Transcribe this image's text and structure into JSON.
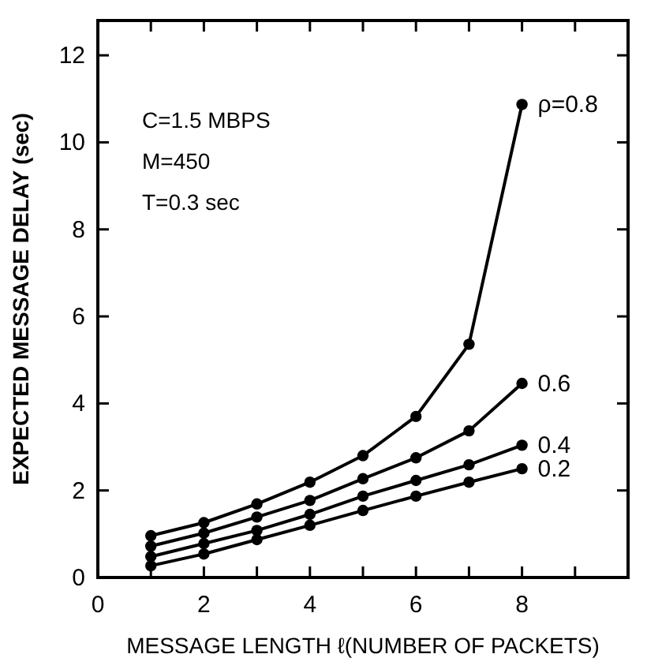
{
  "chart_data": {
    "type": "line",
    "xlabel": "MESSAGE LENGTH ℓ(NUMBER OF PACKETS)",
    "ylabel": "EXPECTED MESSAGE DELAY (sec)",
    "x": [
      1,
      2,
      3,
      4,
      5,
      6,
      7,
      8
    ],
    "series": [
      {
        "name": "ρ=0.8",
        "color": "#000000",
        "values": [
          0.96,
          1.26,
          1.69,
          2.19,
          2.8,
          3.7,
          5.36,
          10.87
        ]
      },
      {
        "name": "0.6",
        "color": "#000000",
        "values": [
          0.72,
          1.02,
          1.39,
          1.77,
          2.27,
          2.75,
          3.37,
          4.46
        ]
      },
      {
        "name": "0.4",
        "color": "#000000",
        "values": [
          0.48,
          0.78,
          1.08,
          1.45,
          1.87,
          2.23,
          2.59,
          3.04
        ]
      },
      {
        "name": "0.2",
        "color": "#000000",
        "values": [
          0.27,
          0.54,
          0.87,
          1.2,
          1.54,
          1.87,
          2.19,
          2.5
        ]
      }
    ],
    "xlim": [
      0,
      10
    ],
    "xticks": [
      0,
      {
        "value": 1,
        "label": null
      },
      2,
      {
        "value": 3,
        "label": null
      },
      4,
      {
        "value": 5,
        "label": null
      },
      6,
      {
        "value": 7,
        "label": null
      },
      8,
      {
        "value": 9,
        "label": null
      }
    ],
    "ylim": [
      0,
      12.8
    ],
    "yticks": [
      0,
      2,
      4,
      6,
      8,
      10,
      12
    ],
    "annotations": [
      "C=1.5 MBPS",
      "M=450",
      "T=0.3 sec"
    ],
    "marker": "circle",
    "line_style": "solid",
    "grid": false
  }
}
